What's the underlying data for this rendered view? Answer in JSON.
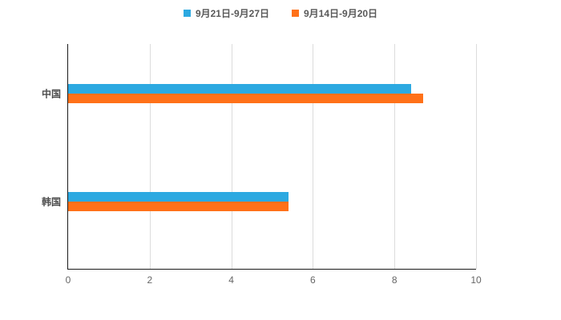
{
  "chart_data": {
    "type": "bar",
    "orientation": "horizontal",
    "title": "",
    "xlabel": "",
    "ylabel": "",
    "xlim": [
      0,
      10
    ],
    "ticks": [
      0,
      2,
      4,
      6,
      8,
      10
    ],
    "grid": true,
    "legend_position": "top-center",
    "categories": [
      "中国",
      "韩国"
    ],
    "category_centers": [
      0.22,
      0.7
    ],
    "series": [
      {
        "name": "9月21日-9月27日",
        "color": "#2CA9E1",
        "values": [
          8.4,
          5.4
        ]
      },
      {
        "name": "9月14日-9月20日",
        "color": "#FF7119",
        "values": [
          8.7,
          5.4
        ]
      }
    ]
  }
}
